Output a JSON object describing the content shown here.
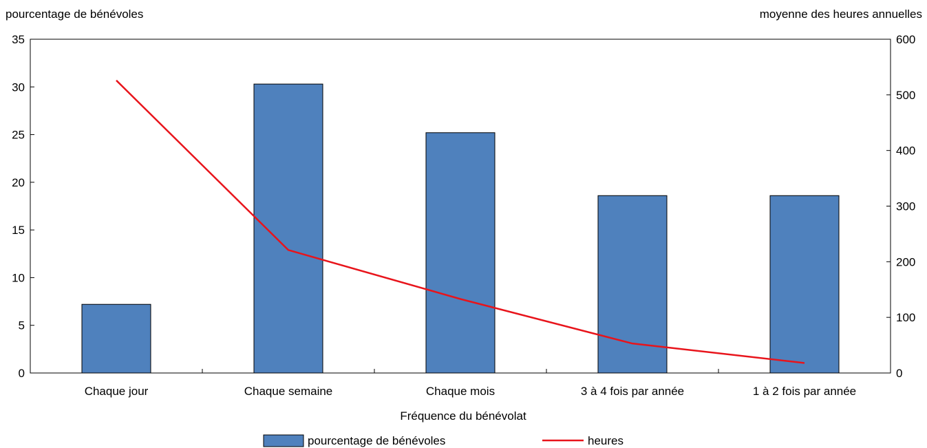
{
  "chart_data": {
    "type": "bar",
    "xlabel": "Fréquence du bénévolat",
    "ylabel_left": "pourcentage de bénévoles",
    "ylabel_right": "moyenne des heures annuelles",
    "categories": [
      "Chaque jour",
      "Chaque semaine",
      "Chaque mois",
      "3 à 4 fois par année",
      "1 à 2 fois par année"
    ],
    "ylim_left": [
      0,
      35
    ],
    "yticks_left": [
      "0",
      "5",
      "10",
      "15",
      "20",
      "25",
      "30",
      "35"
    ],
    "ylim_right": [
      0,
      600
    ],
    "yticks_right": [
      "0",
      "100",
      "200",
      "300",
      "400",
      "500",
      "600"
    ],
    "grid": false,
    "legend_position": "bottom",
    "series": [
      {
        "name": "pourcentage de bénévoles",
        "type": "bar",
        "axis": "left",
        "color": "#4f81bd",
        "values": [
          7.2,
          30.3,
          25.2,
          18.6,
          18.6
        ]
      },
      {
        "name": "heures",
        "type": "line",
        "axis": "right",
        "color": "#e8141b",
        "values": [
          526,
          221,
          133,
          53,
          18
        ]
      }
    ]
  }
}
